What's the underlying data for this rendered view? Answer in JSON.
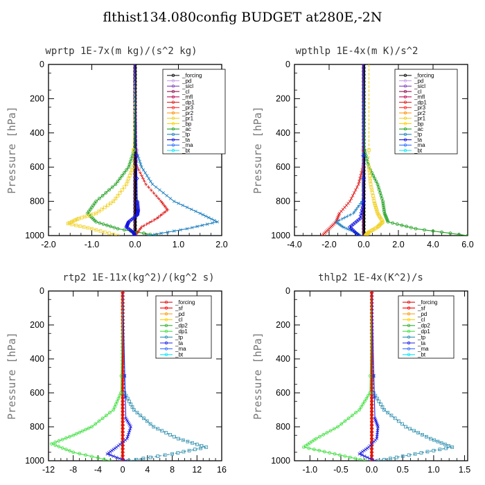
{
  "figure_title": "flthist134.080config  BUDGET at280E,-2N",
  "colors": {
    "_forcing": "#b03020",
    "_pd": "#c8a0e8",
    "_sicl": "#8040c0",
    "_cl": "#901050",
    "_mfl": "#c01060",
    "_dp1": "#e02020",
    "_pr3": "#ff2a2a",
    "_pr2": "#ff8c00",
    "_pr1": "#f0d020",
    "_bp": "#ffd000",
    "_ac": "#20a020",
    "_tp": "#2080c0",
    "_ta": "#1010e0",
    "_ma": "#3070ff",
    "_bt": "#00e8ff",
    "_sf": "#ff0000",
    "_dp2": "#30b030",
    "_dp1_green": "#40e040",
    "_tp_teal": "#3090b0",
    "_ta_blue": "#2020e0",
    "_ma_blue": "#4070ff",
    "_bt_cyan": "#00e8ff",
    "_forcing_red": "#e01010",
    "_pd_orange": "#ff9a00",
    "_cl_yellow": "#ffd000"
  },
  "chart_data": [
    {
      "type": "line",
      "title": "wprtp  1E-7x(m kg)/(s^2 kg)",
      "ylabel": "Pressure [hPa]",
      "xlim": [
        -2.0,
        2.0
      ],
      "ylim": [
        1000,
        0
      ],
      "xticks": [
        -2.0,
        -1.0,
        0.0,
        1.0,
        2.0
      ],
      "xtick_labels": [
        "-2.0",
        "-1.0",
        "0.0",
        "1.0",
        "2.0"
      ],
      "yticks": [
        0,
        200,
        400,
        600,
        800,
        1000
      ],
      "ytick_labels": [
        "0",
        "200",
        "400",
        "600",
        "800",
        "1000"
      ],
      "legend": [
        "_forcing",
        "_pd",
        "_sicl",
        "_cl",
        "_mfl",
        "_dp1",
        "_pr3",
        "_pr2",
        "_pr1",
        "_bp",
        "_ac",
        "_tp",
        "_ta",
        "_ma",
        "_bt"
      ],
      "legend_colors": [
        "#000000",
        "#c8a0e8",
        "#8040c0",
        "#901050",
        "#c01060",
        "#e02020",
        "#ff2a2a",
        "#ff8c00",
        "#f0d020",
        "#ffd000",
        "#20a020",
        "#2080c0",
        "#1010e0",
        "#3070ff",
        "#00e8ff"
      ],
      "series": [
        {
          "name": "_ac",
          "color": "#20a020",
          "y": [
            0,
            500,
            600,
            700,
            800,
            870,
            920,
            960,
            1000
          ],
          "x": [
            0,
            -0.02,
            -0.15,
            -0.45,
            -0.9,
            -1.1,
            -0.9,
            -0.4,
            0.5
          ]
        },
        {
          "name": "_pr1",
          "color": "#f0d020",
          "y": [
            0,
            600,
            700,
            800,
            870,
            900,
            930,
            960,
            1000
          ],
          "x": [
            0,
            -0.05,
            -0.2,
            -0.5,
            -0.9,
            -1.3,
            -1.55,
            -1.0,
            -0.4
          ]
        },
        {
          "name": "_tp",
          "color": "#2080c0",
          "y": [
            0,
            500,
            600,
            700,
            800,
            870,
            920,
            960,
            1000
          ],
          "x": [
            0,
            0.02,
            0.15,
            0.4,
            0.9,
            1.5,
            1.9,
            1.2,
            0.3
          ]
        },
        {
          "name": "_dp1",
          "color": "#e02020",
          "y": [
            0,
            600,
            700,
            800,
            850,
            900,
            950,
            1000
          ],
          "x": [
            0,
            0.05,
            0.25,
            0.6,
            0.75,
            0.5,
            0.15,
            0.0
          ]
        },
        {
          "name": "_ta",
          "color": "#1010e0",
          "y": [
            0,
            800,
            850,
            880,
            920,
            950,
            980,
            1000
          ],
          "x": [
            0,
            0.05,
            0.07,
            0.05,
            -0.15,
            -0.2,
            -0.05,
            0.0
          ]
        }
      ]
    },
    {
      "type": "line",
      "title": "wpthlp  1E-4x(m K)/s^2",
      "ylabel": "Pressure [hPa]",
      "xlim": [
        -4.0,
        6.0
      ],
      "ylim": [
        1000,
        0
      ],
      "xticks": [
        -4.0,
        -2.0,
        0.0,
        2.0,
        4.0,
        6.0
      ],
      "xtick_labels": [
        "-4.0",
        "-2.0",
        "0.0",
        "2.0",
        "4.0",
        "6.0"
      ],
      "yticks": [
        0,
        200,
        400,
        600,
        800,
        1000
      ],
      "ytick_labels": [
        "0",
        "200",
        "400",
        "600",
        "800",
        "1000"
      ],
      "legend": [
        "_forcing",
        "_pd",
        "_sicl",
        "_cl",
        "_mfl",
        "_dp1",
        "_pr3",
        "_pr2",
        "_pr1",
        "_bp",
        "_ac",
        "_tp",
        "_ta",
        "_ma",
        "_bt"
      ],
      "legend_colors": [
        "#000000",
        "#c8a0e8",
        "#8040c0",
        "#901050",
        "#c01060",
        "#e02020",
        "#ff2a2a",
        "#ff8c00",
        "#f0d020",
        "#ffd000",
        "#20a020",
        "#2080c0",
        "#1010e0",
        "#3070ff",
        "#00e8ff"
      ],
      "series": [
        {
          "name": "_ac",
          "color": "#20a020",
          "y": [
            0,
            500,
            600,
            700,
            800,
            870,
            920,
            960,
            1000
          ],
          "x": [
            0,
            0.05,
            0.3,
            0.8,
            1.1,
            1.2,
            1.4,
            3.0,
            6.0
          ]
        },
        {
          "name": "_pr1",
          "color": "#f0d020",
          "y": [
            0,
            600,
            700,
            800,
            870,
            920,
            950,
            980,
            1000
          ],
          "x": [
            0.3,
            0.3,
            0.4,
            0.6,
            0.8,
            1.1,
            0.8,
            0.3,
            0.1
          ]
        },
        {
          "name": "_dp1",
          "color": "#e02020",
          "y": [
            0,
            600,
            700,
            800,
            870,
            920,
            960,
            1000
          ],
          "x": [
            0,
            -0.05,
            -0.3,
            -0.8,
            -1.4,
            -1.6,
            -2.0,
            -2.4
          ]
        },
        {
          "name": "_tp",
          "color": "#2080c0",
          "y": [
            0,
            800,
            870,
            920,
            950,
            980,
            1000
          ],
          "x": [
            0,
            -0.1,
            -0.6,
            -1.6,
            -1.2,
            -0.5,
            -0.2
          ]
        },
        {
          "name": "_ta",
          "color": "#1010e0",
          "y": [
            0,
            800,
            900,
            950,
            1000
          ],
          "x": [
            0,
            0,
            -0.2,
            -0.8,
            -0.3
          ]
        }
      ]
    },
    {
      "type": "line",
      "title": "rtp2  1E-11x(kg^2)/(kg^2 s)",
      "ylabel": "Pressure [hPa]",
      "xlim": [
        -12,
        16
      ],
      "ylim": [
        1000,
        0
      ],
      "xticks": [
        -12,
        -8,
        -4,
        0,
        4,
        8,
        12,
        16
      ],
      "xtick_labels": [
        "-12",
        "-8",
        "-4",
        "0",
        "4",
        "8",
        "12",
        "16"
      ],
      "yticks": [
        0,
        200,
        400,
        600,
        800,
        1000
      ],
      "ytick_labels": [
        "0",
        "200",
        "400",
        "600",
        "800",
        "1000"
      ],
      "legend": [
        "_forcing",
        "_sf",
        "_pd",
        "_cl",
        "_dp2",
        "_dp1",
        "_tp",
        "_ta",
        "_ma",
        "_bt"
      ],
      "legend_colors": [
        "#e01010",
        "#ff0000",
        "#ff9a00",
        "#ffd000",
        "#30b030",
        "#40e040",
        "#3090b0",
        "#2020e0",
        "#4070ff",
        "#00e8ff"
      ],
      "series": [
        {
          "name": "_dp1",
          "color": "#40e040",
          "y": [
            0,
            600,
            700,
            800,
            850,
            900,
            950,
            1000
          ],
          "x": [
            0,
            -0.3,
            -1.5,
            -5.0,
            -8.0,
            -11.5,
            -8.0,
            -2.0
          ]
        },
        {
          "name": "_tp",
          "color": "#3090b0",
          "y": [
            0,
            600,
            700,
            800,
            870,
            920,
            960,
            1000
          ],
          "x": [
            0,
            0.3,
            1.8,
            5.0,
            9.0,
            13.5,
            8.0,
            1.0
          ]
        },
        {
          "name": "_ta",
          "color": "#2020e0",
          "y": [
            0,
            750,
            800,
            870,
            920,
            960,
            1000
          ],
          "x": [
            0,
            0.5,
            1.3,
            0.7,
            -1.0,
            -2.5,
            0.5
          ]
        },
        {
          "name": "_forcing",
          "color": "#e01010",
          "y": [
            0,
            1000
          ],
          "x": [
            0,
            0
          ]
        }
      ]
    },
    {
      "type": "line",
      "title": "thlp2  1E-4x(K^2)/s",
      "ylabel": "Pressure [hPa]",
      "xlim": [
        -1.25,
        1.55
      ],
      "ylim": [
        1000,
        0
      ],
      "xticks": [
        -1.0,
        -0.5,
        0.0,
        0.5,
        1.0,
        1.5
      ],
      "xtick_labels": [
        "-1.0",
        "-0.5",
        "0.0",
        "0.5",
        "1.0",
        "1.5"
      ],
      "yticks": [
        0,
        200,
        400,
        600,
        800,
        1000
      ],
      "ytick_labels": [
        "0",
        "200",
        "400",
        "600",
        "800",
        "1000"
      ],
      "legend": [
        "_forcing",
        "_sf",
        "_pd",
        "_cl",
        "_dp2",
        "_dp1",
        "_tp",
        "_ta",
        "_ma",
        "_bt"
      ],
      "legend_colors": [
        "#e01010",
        "#ff0000",
        "#ff9a00",
        "#ffd000",
        "#30b030",
        "#40e040",
        "#3090b0",
        "#2020e0",
        "#4070ff",
        "#00e8ff"
      ],
      "series": [
        {
          "name": "_dp1",
          "color": "#40e040",
          "y": [
            0,
            600,
            700,
            800,
            870,
            920,
            960,
            1000
          ],
          "x": [
            0,
            -0.03,
            -0.2,
            -0.55,
            -0.9,
            -1.1,
            -0.6,
            -0.1
          ]
        },
        {
          "name": "_tp",
          "color": "#3090b0",
          "y": [
            0,
            600,
            700,
            800,
            870,
            920,
            960,
            1000
          ],
          "x": [
            0,
            0.03,
            0.2,
            0.55,
            0.95,
            1.3,
            0.7,
            0.1
          ]
        },
        {
          "name": "_ta",
          "color": "#2020e0",
          "y": [
            0,
            750,
            800,
            870,
            920,
            960,
            1000
          ],
          "x": [
            0,
            0.05,
            0.1,
            0.08,
            -0.05,
            -0.2,
            0.05
          ]
        },
        {
          "name": "_forcing",
          "color": "#e01010",
          "y": [
            0,
            1000
          ],
          "x": [
            0,
            0
          ]
        }
      ]
    }
  ]
}
